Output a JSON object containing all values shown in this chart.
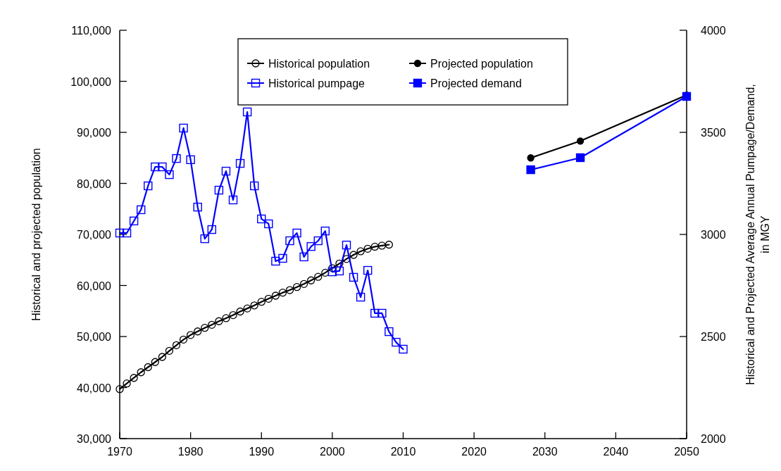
{
  "chart_data": {
    "type": "line",
    "xlim": [
      1970,
      2050
    ],
    "xticks": [
      1970,
      1980,
      1990,
      2000,
      2010,
      2020,
      2030,
      2040,
      2050
    ],
    "ylim": [
      30000,
      110000
    ],
    "yticks": [
      {
        "value": 30000,
        "label": "30,000"
      },
      {
        "value": 40000,
        "label": "40,000"
      },
      {
        "value": 50000,
        "label": "50,000"
      },
      {
        "value": 60000,
        "label": "60,000"
      },
      {
        "value": 70000,
        "label": "70,000"
      },
      {
        "value": 80000,
        "label": "80,000"
      },
      {
        "value": 90000,
        "label": "90,000"
      },
      {
        "value": 100000,
        "label": "100,000"
      },
      {
        "value": 110000,
        "label": "110,000"
      }
    ],
    "y2lim": [
      2000,
      4000
    ],
    "y2ticks": [
      2000,
      2500,
      3000,
      3500,
      4000
    ],
    "ylabel": "Historical and projected population",
    "y2label": "Historical and Projected Average Annual Pumpage/Demand, in MGY",
    "legend": "top",
    "grid": false,
    "series": [
      {
        "name": "Historical population",
        "color": "#000000",
        "marker": "circle",
        "x": [
          1970,
          1971,
          1972,
          1973,
          1974,
          1975,
          1976,
          1977,
          1978,
          1979,
          1980,
          1981,
          1982,
          1983,
          1984,
          1985,
          1986,
          1987,
          1988,
          1989,
          1990,
          1991,
          1992,
          1993,
          1994,
          1995,
          1996,
          1997,
          1998,
          1999,
          2000,
          2001,
          2002,
          2003,
          2004,
          2005,
          2006,
          2007,
          2008
        ],
        "values": [
          39700,
          40800,
          41900,
          43000,
          44000,
          45000,
          46000,
          47200,
          48300,
          49400,
          50300,
          51000,
          51700,
          52300,
          53000,
          53600,
          54200,
          54900,
          55500,
          56100,
          56800,
          57400,
          58000,
          58600,
          59100,
          59700,
          60300,
          61000,
          61700,
          62500,
          63400,
          64300,
          65200,
          66000,
          66700,
          67200,
          67600,
          67800,
          68000
        ]
      },
      {
        "name": "Projected population",
        "color": "#000000",
        "marker": "circle",
        "x": [
          2028,
          2035,
          2050
        ],
        "values": [
          85000,
          88300,
          97300
        ]
      },
      {
        "name": "Historical pumpage",
        "color": "#0000ff",
        "marker": "square",
        "axis": "y2",
        "x": [
          1970,
          1971,
          1972,
          1973,
          1974,
          1975,
          1976,
          1977,
          1978,
          1979,
          1980,
          1981,
          1982,
          1983,
          1984,
          1985,
          1986,
          1987,
          1988,
          1989,
          1990,
          1991,
          1992,
          1993,
          1994,
          1995,
          1996,
          1997,
          1998,
          1999,
          2000,
          2001,
          2002,
          2003,
          2004,
          2005,
          2006,
          2007,
          2008,
          2009,
          2010
        ],
        "values": [
          3007,
          3007,
          3066,
          3121,
          3238,
          3331,
          3331,
          3293,
          3372,
          3521,
          3366,
          3134,
          2979,
          3024,
          3217,
          3310,
          3169,
          3348,
          3600,
          3238,
          3076,
          3052,
          2869,
          2883,
          2969,
          3007,
          2890,
          2941,
          2969,
          3017,
          2817,
          2821,
          2948,
          2790,
          2693,
          2824,
          2614,
          2614,
          2524,
          2472,
          2438
        ]
      },
      {
        "name": "Projected demand",
        "color": "#0000ff",
        "marker": "square",
        "axis": "y2",
        "x": [
          2028,
          2035,
          2050
        ],
        "values": [
          3317,
          3376,
          3676
        ]
      }
    ]
  }
}
